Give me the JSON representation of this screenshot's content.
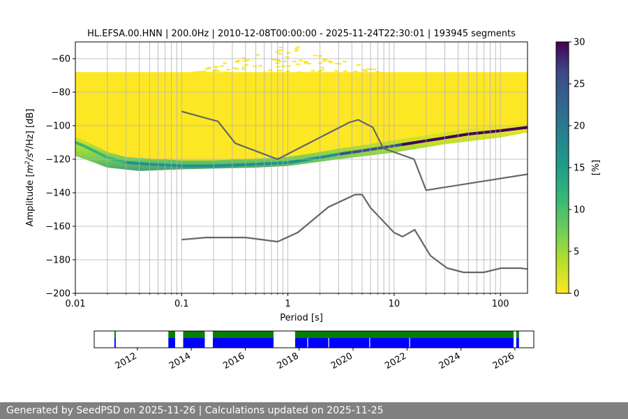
{
  "chart_data": {
    "type": "heatmap",
    "title": "HL.EFSA.00.HNN | 200.0Hz | 2010-12-08T00:00:00 - 2025-11-24T22:30:01 | 193945 segments",
    "xlabel": "Period [s]",
    "ylabel_parts": {
      "pre": "Amplitude [",
      "m": "m",
      "sup1": "2",
      "mid": "/s",
      "sup2": "4",
      "post": "/Hz] [dB]"
    },
    "x_scale": "log",
    "xlim": [
      0.01,
      180
    ],
    "ylim": [
      -200,
      -50
    ],
    "x_ticks": [
      {
        "value": 0.01,
        "label": "0.01"
      },
      {
        "value": 0.1,
        "label": "0.1"
      },
      {
        "value": 1,
        "label": "1"
      },
      {
        "value": 10,
        "label": "10"
      },
      {
        "value": 100,
        "label": "100"
      }
    ],
    "y_ticks": [
      -200,
      -180,
      -160,
      -140,
      -120,
      -100,
      -80,
      -60
    ],
    "grid": true,
    "colorbar": {
      "label": "[%]",
      "min": 0,
      "max": 30,
      "ticks": [
        0,
        5,
        10,
        15,
        20,
        25,
        30
      ],
      "colormap": "viridis"
    },
    "mode_curve": [
      {
        "period": 0.01,
        "db": -110
      },
      {
        "period": 0.012,
        "db": -112
      },
      {
        "period": 0.015,
        "db": -115
      },
      {
        "period": 0.02,
        "db": -119
      },
      {
        "period": 0.03,
        "db": -122
      },
      {
        "period": 0.05,
        "db": -123
      },
      {
        "period": 0.1,
        "db": -124
      },
      {
        "period": 0.2,
        "db": -124
      },
      {
        "period": 0.5,
        "db": -123
      },
      {
        "period": 1,
        "db": -122
      },
      {
        "period": 2,
        "db": -119
      },
      {
        "period": 3,
        "db": -117
      },
      {
        "period": 5,
        "db": -115
      },
      {
        "period": 10,
        "db": -112
      },
      {
        "period": 20,
        "db": -109
      },
      {
        "period": 50,
        "db": -105
      },
      {
        "period": 100,
        "db": -103
      },
      {
        "period": 180,
        "db": -101
      }
    ],
    "spread_upper": [
      {
        "period": 0.01,
        "db": -68
      },
      {
        "period": 0.1,
        "db": -68
      },
      {
        "period": 1,
        "db": -68
      },
      {
        "period": 10,
        "db": -68
      },
      {
        "period": 180,
        "db": -68
      }
    ],
    "spread_lower": [
      {
        "period": 0.01,
        "db": -118
      },
      {
        "period": 0.015,
        "db": -122
      },
      {
        "period": 0.02,
        "db": -125
      },
      {
        "period": 0.04,
        "db": -127
      },
      {
        "period": 0.1,
        "db": -126
      },
      {
        "period": 0.5,
        "db": -125
      },
      {
        "period": 1,
        "db": -124
      },
      {
        "period": 3,
        "db": -120
      },
      {
        "period": 10,
        "db": -116
      },
      {
        "period": 30,
        "db": -111
      },
      {
        "period": 100,
        "db": -107
      },
      {
        "period": 180,
        "db": -104
      }
    ],
    "sparse_upper_zone": {
      "period_min": 0.12,
      "period_max": 8,
      "db_max": -51
    },
    "nhnm": [
      {
        "period": 0.1,
        "db": -91.5
      },
      {
        "period": 0.22,
        "db": -97.4
      },
      {
        "period": 0.32,
        "db": -110.5
      },
      {
        "period": 0.8,
        "db": -120
      },
      {
        "period": 3.8,
        "db": -98
      },
      {
        "period": 4.6,
        "db": -96.5
      },
      {
        "period": 6.3,
        "db": -101
      },
      {
        "period": 7.9,
        "db": -113.5
      },
      {
        "period": 15.4,
        "db": -120
      },
      {
        "period": 20,
        "db": -138.5
      },
      {
        "period": 354.8,
        "db": -126
      }
    ],
    "nlnm": [
      {
        "period": 0.1,
        "db": -168
      },
      {
        "period": 0.17,
        "db": -166.7
      },
      {
        "period": 0.4,
        "db": -166.7
      },
      {
        "period": 0.8,
        "db": -169.2
      },
      {
        "period": 1.24,
        "db": -163.7
      },
      {
        "period": 2.4,
        "db": -148.6
      },
      {
        "period": 4.3,
        "db": -141.1
      },
      {
        "period": 5,
        "db": -141.1
      },
      {
        "period": 6,
        "db": -149
      },
      {
        "period": 10,
        "db": -163.8
      },
      {
        "period": 12,
        "db": -166.2
      },
      {
        "period": 15.6,
        "db": -162.1
      },
      {
        "period": 21.9,
        "db": -177.5
      },
      {
        "period": 31.6,
        "db": -185
      },
      {
        "period": 45,
        "db": -187.5
      },
      {
        "period": 70,
        "db": -187.5
      },
      {
        "period": 101,
        "db": -185
      },
      {
        "period": 154,
        "db": -185
      },
      {
        "period": 180,
        "db": -185.5
      }
    ]
  },
  "availability": {
    "xlim": [
      2010.4,
      2026.7
    ],
    "ticks": [
      {
        "year": 2012,
        "label": "2012"
      },
      {
        "year": 2014,
        "label": "2014"
      },
      {
        "year": 2016,
        "label": "2016"
      },
      {
        "year": 2018,
        "label": "2018"
      },
      {
        "year": 2020,
        "label": "2020"
      },
      {
        "year": 2022,
        "label": "2022"
      },
      {
        "year": 2024,
        "label": "2024"
      },
      {
        "year": 2026,
        "label": "2026"
      }
    ],
    "colors": {
      "top": "#008000",
      "bottom": "#0000ff"
    },
    "intervals": [
      {
        "start": 2011.15,
        "end": 2011.2
      },
      {
        "start": 2013.15,
        "end": 2013.4
      },
      {
        "start": 2013.7,
        "end": 2014.5
      },
      {
        "start": 2014.8,
        "end": 2017.05
      },
      {
        "start": 2017.85,
        "end": 2025.95
      },
      {
        "start": 2026.05,
        "end": 2026.15
      }
    ],
    "gaps": [
      2018.3,
      2019.08,
      2020.6,
      2022.08
    ]
  },
  "footer": {
    "text": "Generated by SeedPSD on 2025-11-26 | Calculations updated on 2025-11-25"
  }
}
